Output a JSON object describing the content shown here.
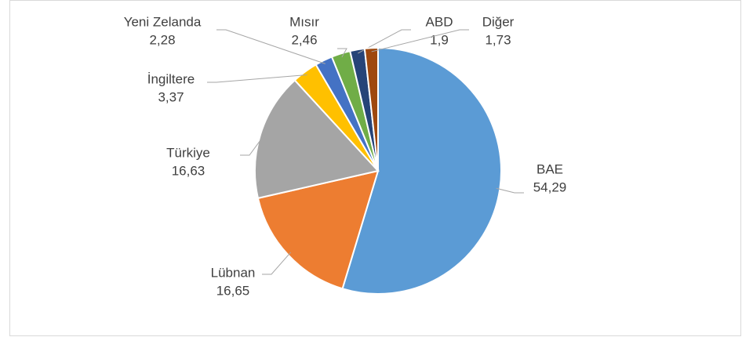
{
  "chart_data": {
    "type": "pie",
    "categories": [
      "BAE",
      "Lübnan",
      "Türkiye",
      "İngiltere",
      "Yeni Zelanda",
      "Mısır",
      "ABD",
      "Diğer"
    ],
    "values": [
      54.29,
      16.65,
      16.63,
      3.37,
      2.28,
      2.46,
      1.9,
      1.73
    ],
    "value_labels": [
      "54,29",
      "16,65",
      "16,63",
      "3,37",
      "2,28",
      "2,46",
      "1,9",
      "1,73"
    ],
    "colors": [
      "#5b9bd5",
      "#ed7d31",
      "#a5a5a5",
      "#ffc000",
      "#4472c4",
      "#70ad47",
      "#264478",
      "#9e480e"
    ]
  }
}
